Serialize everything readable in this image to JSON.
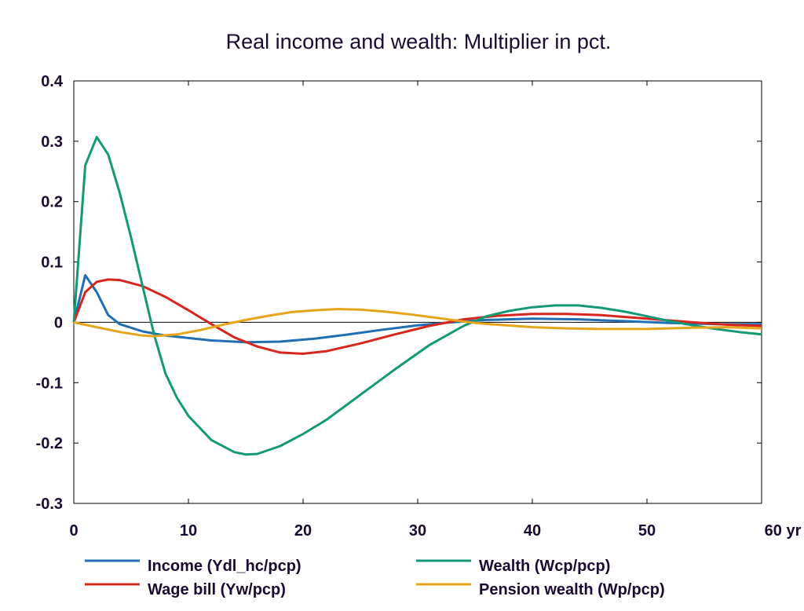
{
  "chart_data": {
    "type": "line",
    "title": "Real income and wealth: Multiplier in pct.",
    "xlabel": "",
    "ylabel": "",
    "x_unit": "yr",
    "xlim": [
      0,
      60
    ],
    "ylim": [
      -0.3,
      0.4
    ],
    "x_ticks": [
      0,
      10,
      20,
      30,
      40,
      50,
      60
    ],
    "x_tick_labels": [
      "0",
      "10",
      "20",
      "30",
      "40",
      "50",
      "60 yr"
    ],
    "y_ticks": [
      -0.3,
      -0.2,
      -0.1,
      0,
      0.1,
      0.2,
      0.3,
      0.4
    ],
    "y_tick_labels": [
      "-0.3",
      "-0.2",
      "-0.1",
      "0",
      "0.1",
      "0.2",
      "0.3",
      "0.4"
    ],
    "grid": false,
    "zero_line": true,
    "legend_position": "bottom",
    "series": [
      {
        "name": "Income (Ydl_hc/pcp)",
        "color": "#1f6fb2",
        "points": [
          [
            0,
            0
          ],
          [
            1,
            0.078
          ],
          [
            2,
            0.05
          ],
          [
            3,
            0.012
          ],
          [
            4,
            -0.003
          ],
          [
            6,
            -0.015
          ],
          [
            8,
            -0.022
          ],
          [
            10,
            -0.026
          ],
          [
            12,
            -0.03
          ],
          [
            15,
            -0.033
          ],
          [
            18,
            -0.032
          ],
          [
            21,
            -0.027
          ],
          [
            24,
            -0.02
          ],
          [
            27,
            -0.012
          ],
          [
            30,
            -0.005
          ],
          [
            33,
            0
          ],
          [
            36,
            0.004
          ],
          [
            40,
            0.006
          ],
          [
            44,
            0.005
          ],
          [
            48,
            0.002
          ],
          [
            52,
            -0.001
          ],
          [
            56,
            -0.003
          ],
          [
            60,
            -0.003
          ]
        ]
      },
      {
        "name": "Wage bill (Yw/pcp)",
        "color": "#d7261e",
        "points": [
          [
            0,
            0
          ],
          [
            1,
            0.05
          ],
          [
            2,
            0.067
          ],
          [
            3,
            0.071
          ],
          [
            4,
            0.07
          ],
          [
            6,
            0.06
          ],
          [
            8,
            0.042
          ],
          [
            10,
            0.02
          ],
          [
            12,
            -0.003
          ],
          [
            14,
            -0.025
          ],
          [
            16,
            -0.04
          ],
          [
            18,
            -0.05
          ],
          [
            20,
            -0.052
          ],
          [
            22,
            -0.048
          ],
          [
            25,
            -0.035
          ],
          [
            28,
            -0.02
          ],
          [
            31,
            -0.006
          ],
          [
            34,
            0.005
          ],
          [
            37,
            0.011
          ],
          [
            40,
            0.014
          ],
          [
            43,
            0.014
          ],
          [
            46,
            0.012
          ],
          [
            50,
            0.006
          ],
          [
            54,
            0
          ],
          [
            57,
            -0.004
          ],
          [
            60,
            -0.006
          ]
        ]
      },
      {
        "name": "Wealth (Wcp/pcp)",
        "color": "#139a74",
        "points": [
          [
            0,
            0
          ],
          [
            1,
            0.26
          ],
          [
            2,
            0.307
          ],
          [
            3,
            0.278
          ],
          [
            4,
            0.215
          ],
          [
            5,
            0.14
          ],
          [
            6,
            0.06
          ],
          [
            7,
            -0.02
          ],
          [
            8,
            -0.085
          ],
          [
            9,
            -0.125
          ],
          [
            10,
            -0.155
          ],
          [
            12,
            -0.195
          ],
          [
            14,
            -0.215
          ],
          [
            15,
            -0.219
          ],
          [
            16,
            -0.218
          ],
          [
            18,
            -0.205
          ],
          [
            20,
            -0.185
          ],
          [
            22,
            -0.162
          ],
          [
            25,
            -0.12
          ],
          [
            28,
            -0.078
          ],
          [
            31,
            -0.038
          ],
          [
            34,
            -0.006
          ],
          [
            36,
            0.01
          ],
          [
            38,
            0.019
          ],
          [
            40,
            0.025
          ],
          [
            42,
            0.028
          ],
          [
            44,
            0.028
          ],
          [
            46,
            0.024
          ],
          [
            48,
            0.018
          ],
          [
            50,
            0.01
          ],
          [
            52,
            0.002
          ],
          [
            54,
            -0.005
          ],
          [
            56,
            -0.011
          ],
          [
            58,
            -0.016
          ],
          [
            60,
            -0.02
          ]
        ]
      },
      {
        "name": "Pension wealth (Wp/pcp)",
        "color": "#e6a51b",
        "points": [
          [
            0,
            0
          ],
          [
            2,
            -0.008
          ],
          [
            4,
            -0.016
          ],
          [
            6,
            -0.022
          ],
          [
            7,
            -0.023
          ],
          [
            9,
            -0.02
          ],
          [
            11,
            -0.013
          ],
          [
            13,
            -0.004
          ],
          [
            15,
            0.004
          ],
          [
            17,
            0.011
          ],
          [
            19,
            0.017
          ],
          [
            21,
            0.02
          ],
          [
            23,
            0.022
          ],
          [
            25,
            0.021
          ],
          [
            27,
            0.018
          ],
          [
            29,
            0.014
          ],
          [
            31,
            0.009
          ],
          [
            33,
            0.004
          ],
          [
            35,
            -0.001
          ],
          [
            37,
            -0.004
          ],
          [
            40,
            -0.008
          ],
          [
            43,
            -0.01
          ],
          [
            46,
            -0.011
          ],
          [
            50,
            -0.011
          ],
          [
            54,
            -0.009
          ],
          [
            57,
            -0.008
          ],
          [
            60,
            -0.01
          ]
        ]
      }
    ]
  }
}
